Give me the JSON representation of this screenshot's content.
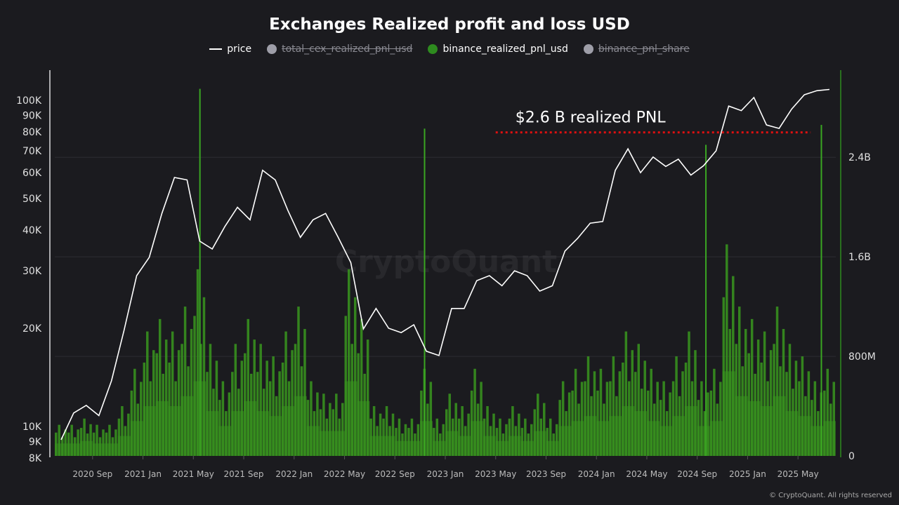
{
  "chart_data": {
    "type": "line+bar",
    "title": "Exchanges Realized profit and loss USD",
    "legend": [
      {
        "name": "price",
        "color": "#ffffff",
        "enabled": true
      },
      {
        "name": "total_cex_realized_pnl_usd",
        "color": "#9e9ea8",
        "enabled": false
      },
      {
        "name": "binance_realized_pnl_usd",
        "color": "#2e8b1f",
        "enabled": true
      },
      {
        "name": "binance_pnl_share",
        "color": "#9e9ea8",
        "enabled": false
      }
    ],
    "legend_placement": "top-center",
    "left_axis": {
      "scale": "log",
      "range": [
        8000,
        120000
      ],
      "ticks": [
        8000,
        9000,
        10000,
        20000,
        30000,
        40000,
        50000,
        60000,
        70000,
        80000,
        90000,
        100000
      ],
      "tick_labels": [
        "8K",
        "9K",
        "10K",
        "20K",
        "30K",
        "40K",
        "50K",
        "60K",
        "70K",
        "80K",
        "90K",
        "100K"
      ]
    },
    "right_axis": {
      "scale": "linear",
      "range": [
        0,
        3100000000
      ],
      "ticks": [
        0,
        800000000,
        1600000000,
        2400000000
      ],
      "tick_labels": [
        "0",
        "800M",
        "1.6B",
        "2.4B"
      ]
    },
    "x_ticks": [
      "2020 Sep",
      "2021 Jan",
      "2021 May",
      "2021 Sep",
      "2022 Jan",
      "2022 May",
      "2022 Sep",
      "2023 Jan",
      "2023 May",
      "2023 Sep",
      "2024 Jan",
      "2024 May",
      "2024 Sep",
      "2025 Jan",
      "2025 May"
    ],
    "x_tick_dates": [
      "2020-09",
      "2021-01",
      "2021-05",
      "2021-09",
      "2022-01",
      "2022-05",
      "2022-09",
      "2023-01",
      "2023-05",
      "2023-09",
      "2024-01",
      "2024-05",
      "2024-09",
      "2025-01",
      "2025-05"
    ],
    "x_range": [
      "2020-06",
      "2025-07"
    ],
    "grid": true,
    "months": [
      "2020-06",
      "2020-07",
      "2020-08",
      "2020-09",
      "2020-10",
      "2020-11",
      "2020-12",
      "2021-01",
      "2021-02",
      "2021-03",
      "2021-04",
      "2021-05",
      "2021-06",
      "2021-07",
      "2021-08",
      "2021-09",
      "2021-10",
      "2021-11",
      "2021-12",
      "2022-01",
      "2022-02",
      "2022-03",
      "2022-04",
      "2022-05",
      "2022-06",
      "2022-07",
      "2022-08",
      "2022-09",
      "2022-10",
      "2022-11",
      "2022-12",
      "2023-01",
      "2023-02",
      "2023-03",
      "2023-04",
      "2023-05",
      "2023-06",
      "2023-07",
      "2023-08",
      "2023-09",
      "2023-10",
      "2023-11",
      "2023-12",
      "2024-01",
      "2024-02",
      "2024-03",
      "2024-04",
      "2024-05",
      "2024-06",
      "2024-07",
      "2024-08",
      "2024-09",
      "2024-10",
      "2024-11",
      "2024-12",
      "2025-01",
      "2025-02",
      "2025-03",
      "2025-04",
      "2025-05",
      "2025-06",
      "2025-07"
    ],
    "price": [
      9100,
      11000,
      11600,
      10800,
      13800,
      19700,
      29000,
      33000,
      45000,
      58000,
      57000,
      37000,
      35000,
      41000,
      47000,
      43000,
      61000,
      57000,
      46000,
      38000,
      43000,
      45000,
      38000,
      31800,
      19900,
      23000,
      20000,
      19400,
      20500,
      17000,
      16500,
      23000,
      23000,
      28000,
      29000,
      27000,
      30000,
      29000,
      26000,
      27000,
      34500,
      37700,
      42000,
      42500,
      61000,
      71000,
      60000,
      67000,
      62700,
      66000,
      59000,
      63000,
      70000,
      96000,
      93000,
      102000,
      84000,
      82000,
      94000,
      104000,
      107000,
      108000
    ],
    "binance_realized_pnl_usd": [
      250000000,
      250000000,
      300000000,
      250000000,
      250000000,
      400000000,
      700000000,
      1000000000,
      1100000000,
      1000000000,
      1200000000,
      1500000000,
      900000000,
      600000000,
      900000000,
      1100000000,
      900000000,
      800000000,
      1000000000,
      1200000000,
      600000000,
      500000000,
      500000000,
      1500000000,
      1100000000,
      400000000,
      400000000,
      300000000,
      300000000,
      700000000,
      300000000,
      500000000,
      400000000,
      700000000,
      400000000,
      300000000,
      400000000,
      300000000,
      500000000,
      300000000,
      600000000,
      700000000,
      800000000,
      700000000,
      800000000,
      1000000000,
      900000000,
      700000000,
      600000000,
      800000000,
      1000000000,
      600000000,
      700000000,
      1700000000,
      1200000000,
      1100000000,
      1000000000,
      1200000000,
      900000000,
      800000000,
      600000000,
      700000000
    ],
    "spikes": [
      {
        "date": "2021-05-15",
        "value": 2950000000
      },
      {
        "date": "2022-11-10",
        "value": 2630000000
      },
      {
        "date": "2024-09-20",
        "value": 2500000000
      },
      {
        "date": "2025-06-25",
        "value": 2660000000
      }
    ],
    "annotations": [
      {
        "text": "$2.6 B  realized PNL",
        "value": 2600000000,
        "line_color": "#e01010",
        "from": "2023-05",
        "to": "2025-06"
      }
    ],
    "watermark": "CryptoQuant"
  },
  "footer": {
    "copyright": "© CryptoQuant. All rights reserved"
  }
}
